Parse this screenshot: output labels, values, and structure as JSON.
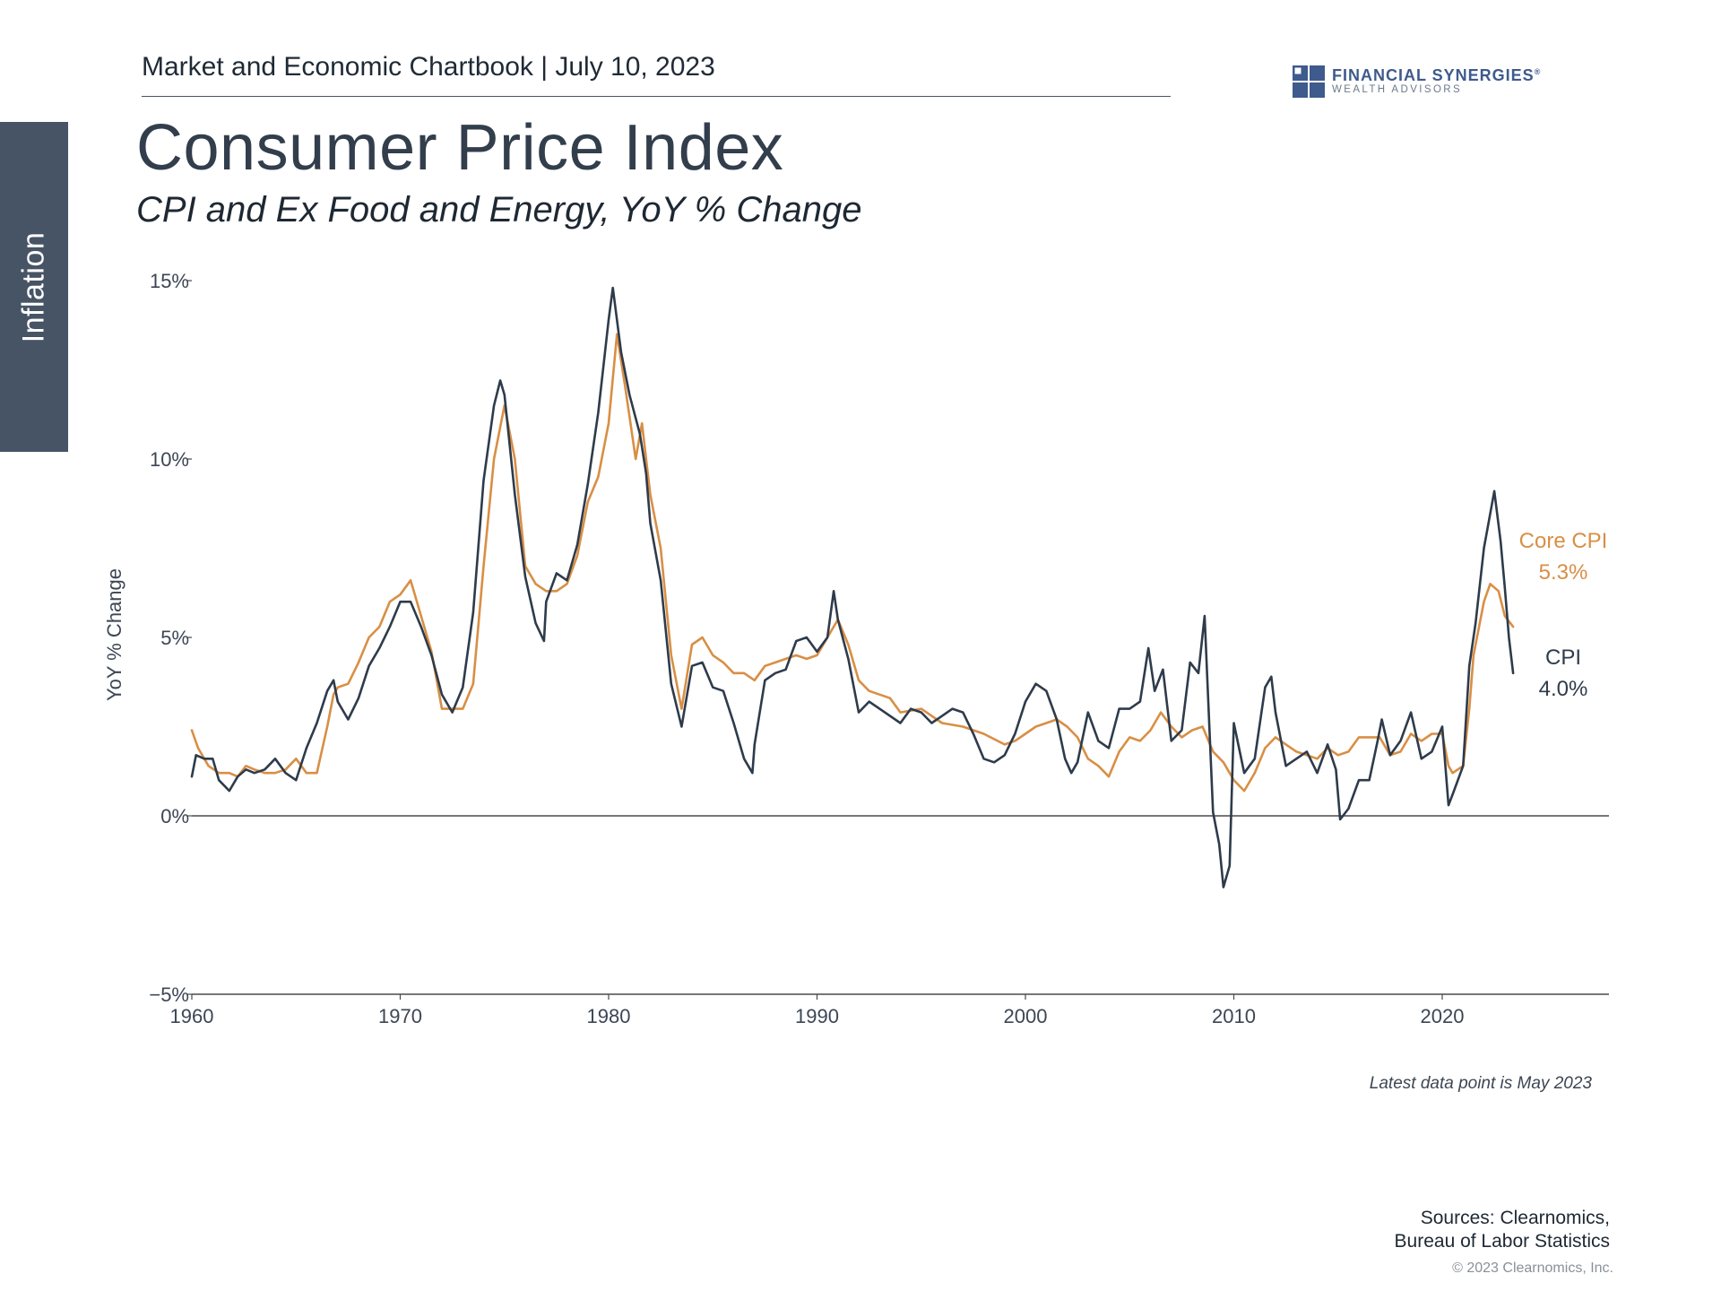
{
  "side_tab": {
    "label": "Inflation"
  },
  "header": {
    "text": "Market and Economic Chartbook | July 10, 2023"
  },
  "logo": {
    "name": "FINANCIAL SYNERGIES",
    "registered": "®",
    "sub": "WEALTH ADVISORS"
  },
  "note": "Latest data point is May 2023",
  "sources": {
    "line1": "Sources: Clearnomics,",
    "line2": "Bureau of Labor Statistics"
  },
  "copyright": "© 2023 Clearnomics, Inc.",
  "colors": {
    "cpi": "#2e3b4b",
    "core": "#d88f45",
    "axis": "#4a4a4a",
    "tab": "#475466"
  },
  "chart_data": {
    "type": "line",
    "title": "Consumer Price Index",
    "subtitle": "CPI and Ex Food and Energy, YoY % Change",
    "xlabel": "",
    "ylabel": "YoY % Change",
    "xlim": [
      1960,
      2028
    ],
    "ylim": [
      -5,
      15
    ],
    "x_ticks": [
      1960,
      1970,
      1980,
      1990,
      2000,
      2010,
      2020
    ],
    "x_tick_labels": [
      "1960",
      "1970",
      "1980",
      "1990",
      "2000",
      "2010",
      "2020"
    ],
    "y_ticks": [
      15,
      10,
      5,
      0,
      -5
    ],
    "y_tick_labels": [
      "15%",
      "10%",
      "5%",
      "0%",
      "−5%"
    ],
    "zero_line": true,
    "series": [
      {
        "name": "CPI",
        "end_label": "CPI",
        "end_value_label": "4.0%",
        "points": [
          [
            1960.0,
            1.1
          ],
          [
            1960.2,
            1.7
          ],
          [
            1960.6,
            1.6
          ],
          [
            1961.0,
            1.6
          ],
          [
            1961.3,
            1.0
          ],
          [
            1961.8,
            0.7
          ],
          [
            1962.2,
            1.1
          ],
          [
            1962.6,
            1.3
          ],
          [
            1963.0,
            1.2
          ],
          [
            1963.5,
            1.3
          ],
          [
            1964.0,
            1.6
          ],
          [
            1964.5,
            1.2
          ],
          [
            1965.0,
            1.0
          ],
          [
            1965.5,
            1.9
          ],
          [
            1966.0,
            2.6
          ],
          [
            1966.5,
            3.5
          ],
          [
            1966.8,
            3.8
          ],
          [
            1967.0,
            3.2
          ],
          [
            1967.5,
            2.7
          ],
          [
            1968.0,
            3.3
          ],
          [
            1968.5,
            4.2
          ],
          [
            1969.0,
            4.7
          ],
          [
            1969.5,
            5.3
          ],
          [
            1970.0,
            6.0
          ],
          [
            1970.5,
            6.0
          ],
          [
            1971.0,
            5.3
          ],
          [
            1971.5,
            4.5
          ],
          [
            1972.0,
            3.4
          ],
          [
            1972.5,
            2.9
          ],
          [
            1973.0,
            3.6
          ],
          [
            1973.5,
            5.7
          ],
          [
            1974.0,
            9.4
          ],
          [
            1974.5,
            11.5
          ],
          [
            1974.8,
            12.2
          ],
          [
            1975.0,
            11.8
          ],
          [
            1975.5,
            9.0
          ],
          [
            1976.0,
            6.7
          ],
          [
            1976.5,
            5.4
          ],
          [
            1976.9,
            4.9
          ],
          [
            1977.0,
            6.0
          ],
          [
            1977.5,
            6.8
          ],
          [
            1978.0,
            6.6
          ],
          [
            1978.5,
            7.6
          ],
          [
            1979.0,
            9.3
          ],
          [
            1979.5,
            11.3
          ],
          [
            1980.0,
            13.9
          ],
          [
            1980.2,
            14.8
          ],
          [
            1980.6,
            13.0
          ],
          [
            1981.0,
            11.8
          ],
          [
            1981.5,
            10.7
          ],
          [
            1981.8,
            9.6
          ],
          [
            1982.0,
            8.2
          ],
          [
            1982.5,
            6.6
          ],
          [
            1983.0,
            3.7
          ],
          [
            1983.5,
            2.5
          ],
          [
            1984.0,
            4.2
          ],
          [
            1984.5,
            4.3
          ],
          [
            1985.0,
            3.6
          ],
          [
            1985.5,
            3.5
          ],
          [
            1986.0,
            2.6
          ],
          [
            1986.5,
            1.6
          ],
          [
            1986.9,
            1.2
          ],
          [
            1987.0,
            2.0
          ],
          [
            1987.5,
            3.8
          ],
          [
            1988.0,
            4.0
          ],
          [
            1988.5,
            4.1
          ],
          [
            1989.0,
            4.9
          ],
          [
            1989.5,
            5.0
          ],
          [
            1990.0,
            4.6
          ],
          [
            1990.5,
            5.0
          ],
          [
            1990.8,
            6.3
          ],
          [
            1991.0,
            5.5
          ],
          [
            1991.5,
            4.4
          ],
          [
            1992.0,
            2.9
          ],
          [
            1992.5,
            3.2
          ],
          [
            1993.0,
            3.0
          ],
          [
            1994.0,
            2.6
          ],
          [
            1994.5,
            3.0
          ],
          [
            1995.0,
            2.9
          ],
          [
            1995.5,
            2.6
          ],
          [
            1996.0,
            2.8
          ],
          [
            1996.5,
            3.0
          ],
          [
            1997.0,
            2.9
          ],
          [
            1997.5,
            2.3
          ],
          [
            1998.0,
            1.6
          ],
          [
            1998.5,
            1.5
          ],
          [
            1999.0,
            1.7
          ],
          [
            1999.5,
            2.3
          ],
          [
            2000.0,
            3.2
          ],
          [
            2000.5,
            3.7
          ],
          [
            2001.0,
            3.5
          ],
          [
            2001.5,
            2.7
          ],
          [
            2001.9,
            1.6
          ],
          [
            2002.2,
            1.2
          ],
          [
            2002.5,
            1.5
          ],
          [
            2003.0,
            2.9
          ],
          [
            2003.5,
            2.1
          ],
          [
            2004.0,
            1.9
          ],
          [
            2004.5,
            3.0
          ],
          [
            2005.0,
            3.0
          ],
          [
            2005.5,
            3.2
          ],
          [
            2005.9,
            4.7
          ],
          [
            2006.2,
            3.5
          ],
          [
            2006.6,
            4.1
          ],
          [
            2007.0,
            2.1
          ],
          [
            2007.5,
            2.4
          ],
          [
            2007.9,
            4.3
          ],
          [
            2008.3,
            4.0
          ],
          [
            2008.6,
            5.6
          ],
          [
            2009.0,
            0.1
          ],
          [
            2009.3,
            -0.8
          ],
          [
            2009.5,
            -2.0
          ],
          [
            2009.8,
            -1.4
          ],
          [
            2010.0,
            2.6
          ],
          [
            2010.5,
            1.2
          ],
          [
            2011.0,
            1.6
          ],
          [
            2011.5,
            3.6
          ],
          [
            2011.8,
            3.9
          ],
          [
            2012.0,
            2.9
          ],
          [
            2012.5,
            1.4
          ],
          [
            2013.0,
            1.6
          ],
          [
            2013.5,
            1.8
          ],
          [
            2014.0,
            1.2
          ],
          [
            2014.5,
            2.0
          ],
          [
            2014.9,
            1.3
          ],
          [
            2015.1,
            -0.1
          ],
          [
            2015.5,
            0.2
          ],
          [
            2016.0,
            1.0
          ],
          [
            2016.5,
            1.0
          ],
          [
            2016.9,
            2.1
          ],
          [
            2017.1,
            2.7
          ],
          [
            2017.5,
            1.7
          ],
          [
            2018.0,
            2.1
          ],
          [
            2018.5,
            2.9
          ],
          [
            2019.0,
            1.6
          ],
          [
            2019.5,
            1.8
          ],
          [
            2020.0,
            2.5
          ],
          [
            2020.3,
            0.3
          ],
          [
            2020.5,
            0.6
          ],
          [
            2021.0,
            1.4
          ],
          [
            2021.3,
            4.2
          ],
          [
            2021.6,
            5.4
          ],
          [
            2022.0,
            7.5
          ],
          [
            2022.5,
            9.1
          ],
          [
            2022.8,
            7.7
          ],
          [
            2023.0,
            6.4
          ],
          [
            2023.2,
            5.0
          ],
          [
            2023.4,
            4.0
          ]
        ]
      },
      {
        "name": "Core CPI",
        "end_label": "Core CPI",
        "end_value_label": "5.3%",
        "points": [
          [
            1960.0,
            2.4
          ],
          [
            1960.3,
            1.9
          ],
          [
            1960.8,
            1.4
          ],
          [
            1961.3,
            1.2
          ],
          [
            1961.8,
            1.2
          ],
          [
            1962.2,
            1.1
          ],
          [
            1962.6,
            1.4
          ],
          [
            1963.0,
            1.3
          ],
          [
            1963.5,
            1.2
          ],
          [
            1964.0,
            1.2
          ],
          [
            1964.5,
            1.3
          ],
          [
            1965.0,
            1.6
          ],
          [
            1965.5,
            1.2
          ],
          [
            1966.0,
            1.2
          ],
          [
            1966.5,
            2.5
          ],
          [
            1966.8,
            3.4
          ],
          [
            1967.0,
            3.6
          ],
          [
            1967.5,
            3.7
          ],
          [
            1968.0,
            4.3
          ],
          [
            1968.5,
            5.0
          ],
          [
            1969.0,
            5.3
          ],
          [
            1969.5,
            6.0
          ],
          [
            1970.0,
            6.2
          ],
          [
            1970.5,
            6.6
          ],
          [
            1971.0,
            5.6
          ],
          [
            1971.5,
            4.6
          ],
          [
            1972.0,
            3.0
          ],
          [
            1972.5,
            3.0
          ],
          [
            1973.0,
            3.0
          ],
          [
            1973.5,
            3.7
          ],
          [
            1974.0,
            7.0
          ],
          [
            1974.5,
            10.0
          ],
          [
            1975.0,
            11.5
          ],
          [
            1975.5,
            10.0
          ],
          [
            1976.0,
            7.0
          ],
          [
            1976.5,
            6.5
          ],
          [
            1977.0,
            6.3
          ],
          [
            1977.5,
            6.3
          ],
          [
            1978.0,
            6.5
          ],
          [
            1978.5,
            7.3
          ],
          [
            1979.0,
            8.8
          ],
          [
            1979.5,
            9.5
          ],
          [
            1980.0,
            11.0
          ],
          [
            1980.4,
            13.5
          ],
          [
            1980.8,
            12.0
          ],
          [
            1981.3,
            10.0
          ],
          [
            1981.6,
            11.0
          ],
          [
            1982.0,
            9.0
          ],
          [
            1982.5,
            7.5
          ],
          [
            1983.0,
            4.5
          ],
          [
            1983.5,
            3.0
          ],
          [
            1984.0,
            4.8
          ],
          [
            1984.5,
            5.0
          ],
          [
            1985.0,
            4.5
          ],
          [
            1985.5,
            4.3
          ],
          [
            1986.0,
            4.0
          ],
          [
            1986.5,
            4.0
          ],
          [
            1987.0,
            3.8
          ],
          [
            1987.5,
            4.2
          ],
          [
            1988.0,
            4.3
          ],
          [
            1988.5,
            4.4
          ],
          [
            1989.0,
            4.5
          ],
          [
            1989.5,
            4.4
          ],
          [
            1990.0,
            4.5
          ],
          [
            1990.5,
            5.0
          ],
          [
            1991.0,
            5.5
          ],
          [
            1991.5,
            4.8
          ],
          [
            1992.0,
            3.8
          ],
          [
            1992.5,
            3.5
          ],
          [
            1993.0,
            3.4
          ],
          [
            1993.5,
            3.3
          ],
          [
            1994.0,
            2.9
          ],
          [
            1995.0,
            3.0
          ],
          [
            1996.0,
            2.6
          ],
          [
            1997.0,
            2.5
          ],
          [
            1998.0,
            2.3
          ],
          [
            1999.0,
            2.0
          ],
          [
            1999.5,
            2.1
          ],
          [
            2000.0,
            2.3
          ],
          [
            2000.5,
            2.5
          ],
          [
            2001.0,
            2.6
          ],
          [
            2001.5,
            2.7
          ],
          [
            2002.0,
            2.5
          ],
          [
            2002.5,
            2.2
          ],
          [
            2003.0,
            1.6
          ],
          [
            2003.5,
            1.4
          ],
          [
            2004.0,
            1.1
          ],
          [
            2004.5,
            1.8
          ],
          [
            2005.0,
            2.2
          ],
          [
            2005.5,
            2.1
          ],
          [
            2006.0,
            2.4
          ],
          [
            2006.5,
            2.9
          ],
          [
            2007.0,
            2.5
          ],
          [
            2007.5,
            2.2
          ],
          [
            2008.0,
            2.4
          ],
          [
            2008.5,
            2.5
          ],
          [
            2009.0,
            1.8
          ],
          [
            2009.5,
            1.5
          ],
          [
            2010.0,
            1.0
          ],
          [
            2010.5,
            0.7
          ],
          [
            2011.0,
            1.2
          ],
          [
            2011.5,
            1.9
          ],
          [
            2012.0,
            2.2
          ],
          [
            2012.5,
            2.0
          ],
          [
            2013.0,
            1.8
          ],
          [
            2013.5,
            1.7
          ],
          [
            2014.0,
            1.6
          ],
          [
            2014.5,
            1.9
          ],
          [
            2015.0,
            1.7
          ],
          [
            2015.5,
            1.8
          ],
          [
            2016.0,
            2.2
          ],
          [
            2016.5,
            2.2
          ],
          [
            2017.0,
            2.2
          ],
          [
            2017.5,
            1.7
          ],
          [
            2018.0,
            1.8
          ],
          [
            2018.5,
            2.3
          ],
          [
            2019.0,
            2.1
          ],
          [
            2019.5,
            2.3
          ],
          [
            2020.0,
            2.3
          ],
          [
            2020.3,
            1.4
          ],
          [
            2020.5,
            1.2
          ],
          [
            2021.0,
            1.4
          ],
          [
            2021.3,
            3.0
          ],
          [
            2021.5,
            4.5
          ],
          [
            2022.0,
            6.0
          ],
          [
            2022.3,
            6.5
          ],
          [
            2022.7,
            6.3
          ],
          [
            2023.0,
            5.6
          ],
          [
            2023.4,
            5.3
          ]
        ]
      }
    ]
  }
}
